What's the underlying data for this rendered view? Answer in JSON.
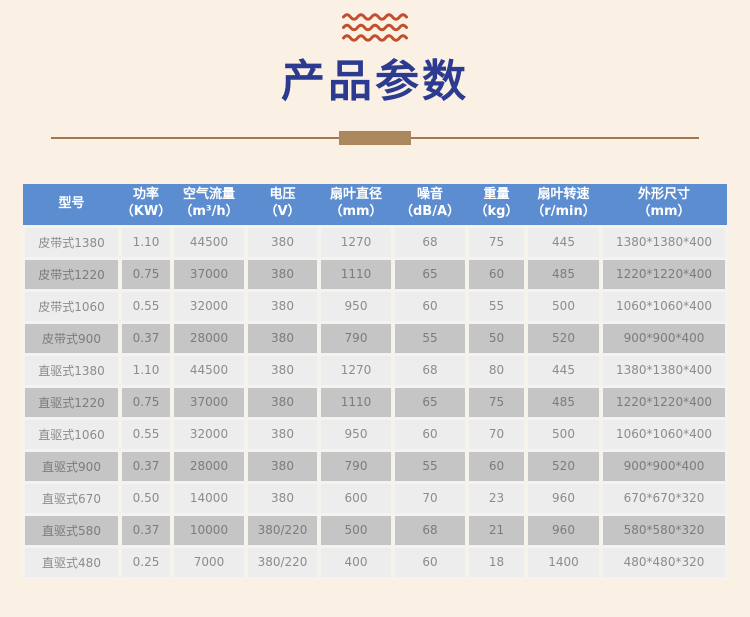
{
  "header": {
    "title": "产品参数"
  },
  "icons": {
    "top_decoration": "triple-wave-icon"
  },
  "colors": {
    "page_background": "#faf1e4",
    "title_text": "#2c3a90",
    "wave_stroke": "#c14f2e",
    "divider_line": "#a3784e",
    "divider_block": "#ac865c",
    "table_header_bg": "#5c8dd0",
    "table_header_text": "#ffffff",
    "row_light_bg": "#ededed",
    "row_dark_bg": "#c5c5c5",
    "row_light_text": "#8c8c8c",
    "row_dark_text": "#7c7c7c",
    "cell_gap": "#f6f3ec"
  },
  "table": {
    "columns": [
      {
        "label": "型号",
        "unit": ""
      },
      {
        "label": "功率",
        "unit": "（KW）"
      },
      {
        "label": "空气流量",
        "unit": "（m³/h）"
      },
      {
        "label": "电压",
        "unit": "（V）"
      },
      {
        "label": "扇叶直径",
        "unit": "（mm）"
      },
      {
        "label": "噪音",
        "unit": "（dB/A）"
      },
      {
        "label": "重量",
        "unit": "（kg）"
      },
      {
        "label": "扇叶转速",
        "unit": "（r/min）"
      },
      {
        "label": "外形尺寸",
        "unit": "（mm）"
      }
    ],
    "rows": [
      [
        "皮带式1380",
        "1.10",
        "44500",
        "380",
        "1270",
        "68",
        "75",
        "445",
        "1380*1380*400"
      ],
      [
        "皮带式1220",
        "0.75",
        "37000",
        "380",
        "1110",
        "65",
        "60",
        "485",
        "1220*1220*400"
      ],
      [
        "皮带式1060",
        "0.55",
        "32000",
        "380",
        "950",
        "60",
        "55",
        "500",
        "1060*1060*400"
      ],
      [
        "皮带式900",
        "0.37",
        "28000",
        "380",
        "790",
        "55",
        "50",
        "520",
        "900*900*400"
      ],
      [
        "直驱式1380",
        "1.10",
        "44500",
        "380",
        "1270",
        "68",
        "80",
        "445",
        "1380*1380*400"
      ],
      [
        "直驱式1220",
        "0.75",
        "37000",
        "380",
        "1110",
        "65",
        "75",
        "485",
        "1220*1220*400"
      ],
      [
        "直驱式1060",
        "0.55",
        "32000",
        "380",
        "950",
        "60",
        "70",
        "500",
        "1060*1060*400"
      ],
      [
        "直驱式900",
        "0.37",
        "28000",
        "380",
        "790",
        "55",
        "60",
        "520",
        "900*900*400"
      ],
      [
        "直驱式670",
        "0.50",
        "14000",
        "380",
        "600",
        "70",
        "23",
        "960",
        "670*670*320"
      ],
      [
        "直驱式580",
        "0.37",
        "10000",
        "380/220",
        "500",
        "68",
        "21",
        "960",
        "580*580*320"
      ],
      [
        "直驱式480",
        "0.25",
        "7000",
        "380/220",
        "400",
        "60",
        "18",
        "1400",
        "480*480*320"
      ]
    ]
  }
}
